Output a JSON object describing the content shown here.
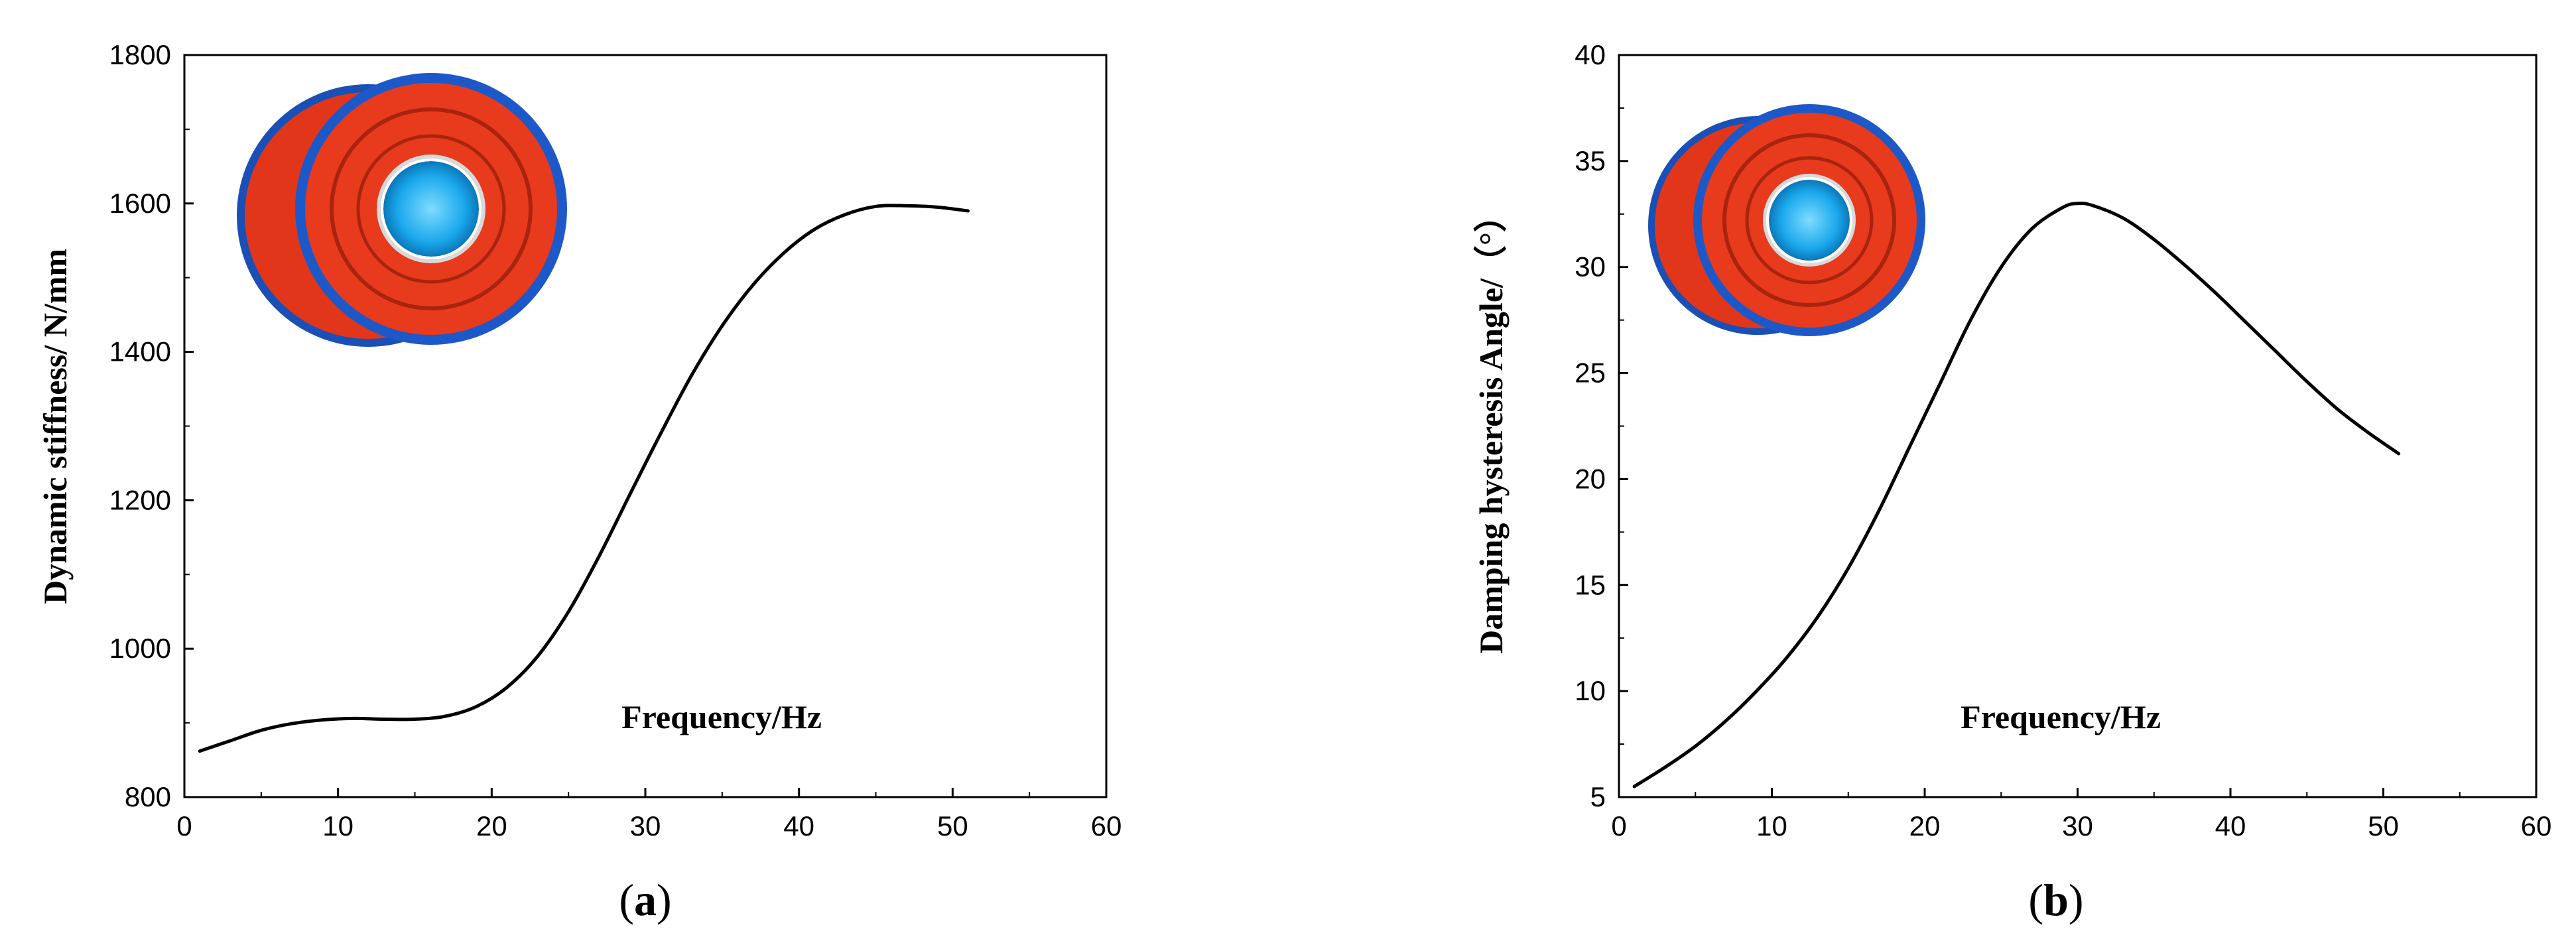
{
  "chart_data": [
    {
      "type": "line",
      "panel_label": {
        "open": "(",
        "letter": "a",
        "close": ")"
      },
      "title": "",
      "xlabel": "",
      "ylabel": "Dynamic stiffness/ N/mm",
      "annotation": "Frequency/Hz",
      "xlim": [
        0,
        60
      ],
      "ylim": [
        800,
        1800
      ],
      "xticks": [
        0,
        10,
        20,
        30,
        40,
        50,
        60
      ],
      "yticks": [
        800,
        1000,
        1200,
        1400,
        1600,
        1800
      ],
      "grid": false,
      "inset_image": "red-rubber-bushing-wheel-with-blue-hub",
      "series": [
        {
          "color": "#000000",
          "x": [
            1,
            3,
            5,
            7,
            9,
            11,
            13,
            15,
            17,
            19,
            21,
            23,
            25,
            27,
            29,
            31,
            33,
            35,
            37,
            39,
            41,
            43,
            45,
            47,
            49,
            51
          ],
          "y": [
            862,
            876,
            890,
            899,
            904,
            906,
            905,
            905,
            909,
            922,
            948,
            990,
            1050,
            1125,
            1208,
            1290,
            1368,
            1435,
            1490,
            1533,
            1565,
            1585,
            1596,
            1597,
            1595,
            1590
          ]
        }
      ]
    },
    {
      "type": "line",
      "panel_label": {
        "open": "(",
        "letter": "b",
        "close": ")"
      },
      "title": "",
      "xlabel": "",
      "ylabel": "Damping hysteresis Angle/（°）",
      "annotation": "Frequency/Hz",
      "xlim": [
        0,
        60
      ],
      "ylim": [
        5,
        40
      ],
      "xticks": [
        0,
        10,
        20,
        30,
        40,
        50,
        60
      ],
      "yticks": [
        5,
        10,
        15,
        20,
        25,
        30,
        35,
        40
      ],
      "grid": false,
      "inset_image": "red-rubber-bushing-wheel-with-blue-hub",
      "series": [
        {
          "color": "#000000",
          "x": [
            1,
            3,
            5,
            7,
            9,
            11,
            13,
            15,
            17,
            19,
            21,
            23,
            25,
            27,
            29,
            30,
            31,
            33,
            35,
            37,
            39,
            41,
            43,
            45,
            47,
            49,
            51
          ],
          "y": [
            5.5,
            6.4,
            7.4,
            8.6,
            10.0,
            11.6,
            13.5,
            15.8,
            18.5,
            21.5,
            24.5,
            27.5,
            30.0,
            31.8,
            32.8,
            33.0,
            32.9,
            32.3,
            31.3,
            30.1,
            28.8,
            27.4,
            26.0,
            24.6,
            23.3,
            22.2,
            21.2
          ]
        }
      ]
    }
  ]
}
